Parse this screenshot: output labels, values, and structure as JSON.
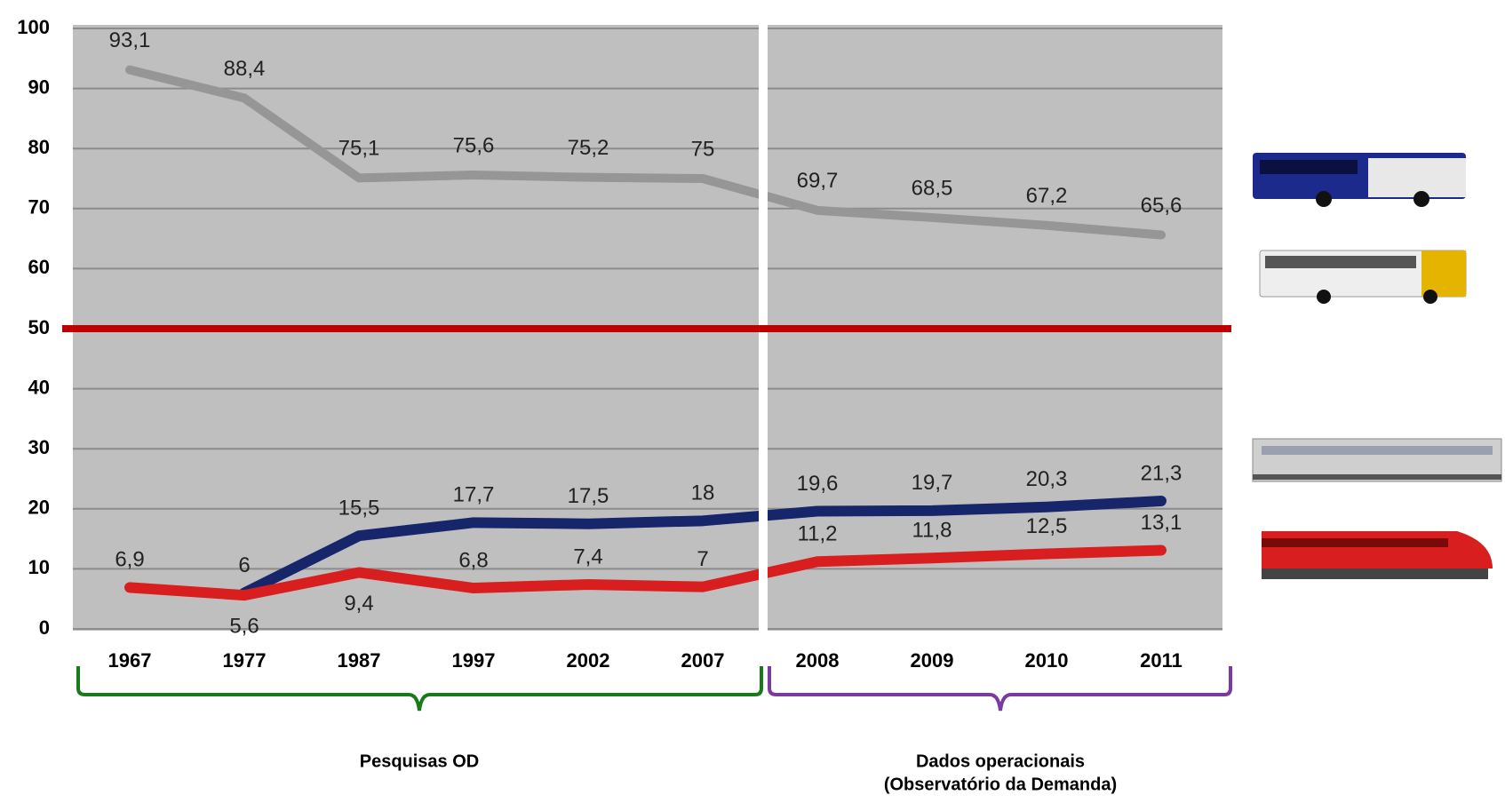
{
  "chart_data": {
    "type": "line",
    "categories": [
      "1967",
      "1977",
      "1987",
      "1997",
      "2002",
      "2007",
      "2008",
      "2009",
      "2010",
      "2011"
    ],
    "series": [
      {
        "color": "#969696",
        "values": [
          93.1,
          88.4,
          75.1,
          75.6,
          75.2,
          75,
          69.7,
          68.5,
          67.2,
          65.6
        ],
        "value_labels": [
          "93,1",
          "88,4",
          "75,1",
          "75,6",
          "75,2",
          "75",
          "69,7",
          "68,5",
          "67,2",
          "65,6"
        ]
      },
      {
        "color": "#17256b",
        "values": [
          null,
          6,
          15.5,
          17.7,
          17.5,
          18,
          19.6,
          19.7,
          20.3,
          21.3
        ],
        "value_labels": [
          null,
          "6",
          "15,5",
          "17,7",
          "17,5",
          "18",
          "19,6",
          "19,7",
          "20,3",
          "21,3"
        ]
      },
      {
        "color": "#d81e1e",
        "values": [
          6.9,
          5.6,
          9.4,
          6.8,
          7.4,
          7,
          11.2,
          11.8,
          12.5,
          13.1
        ],
        "value_labels": [
          "6,9",
          "5,6",
          "9,4",
          "6,8",
          "7,4",
          "7",
          "11,2",
          "11,8",
          "12,5",
          "13,1"
        ]
      }
    ],
    "ylim": [
      0,
      100
    ],
    "yticks": [
      0,
      10,
      20,
      30,
      40,
      50,
      60,
      70,
      80,
      90,
      100
    ],
    "grid": true,
    "reference_line": {
      "value": 50,
      "color": "#c00000"
    },
    "annotations": [
      "Pesquisas OD",
      "Dados operacionais",
      "(Observatório da Demanda)"
    ]
  }
}
